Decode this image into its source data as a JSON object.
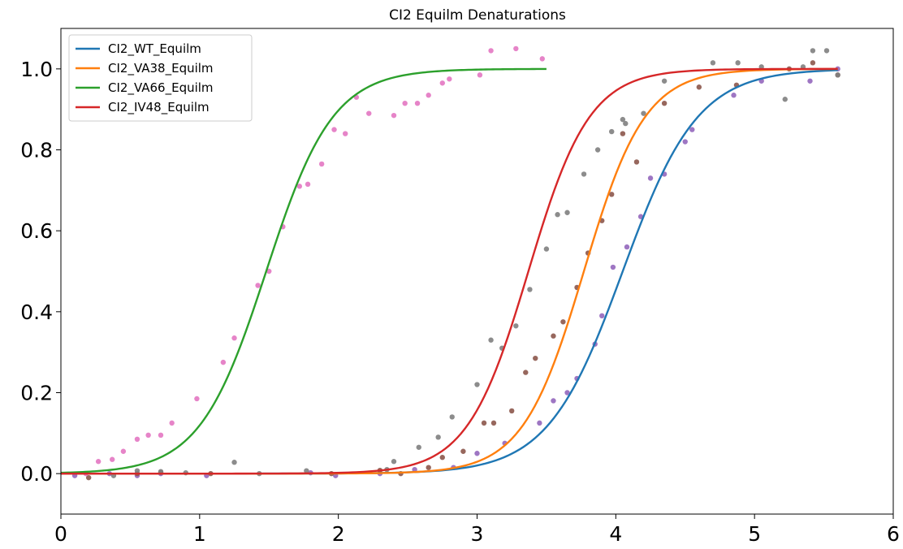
{
  "chart_data": {
    "type": "line",
    "title": "CI2 Equilm Denaturations",
    "xlabel": "",
    "ylabel": "",
    "xlim": [
      0,
      6
    ],
    "ylim": [
      -0.1,
      1.1
    ],
    "xticks": [
      "0",
      "1",
      "2",
      "3",
      "4",
      "5",
      "6"
    ],
    "yticks": [
      "0.0",
      "0.2",
      "0.4",
      "0.6",
      "0.8",
      "1.0"
    ],
    "xtick_values": [
      0,
      1,
      2,
      3,
      4,
      5,
      6
    ],
    "ytick_values": [
      0.0,
      0.2,
      0.4,
      0.6,
      0.8,
      1.0
    ],
    "grid": false,
    "legend_position": "top-left",
    "series": [
      {
        "name": "CI2_WT_Equilm",
        "color": "#1f77b4",
        "fit": {
          "midpoint": 4.05,
          "slope": 0.27,
          "x_range": [
            0.0,
            5.6
          ]
        },
        "points_color": "#9467bd",
        "points": [
          [
            0.1,
            -0.005
          ],
          [
            0.35,
            0.0
          ],
          [
            0.55,
            -0.005
          ],
          [
            0.72,
            0.0
          ],
          [
            1.05,
            -0.005
          ],
          [
            1.8,
            0.002
          ],
          [
            1.98,
            -0.005
          ],
          [
            2.3,
            0.0
          ],
          [
            2.55,
            0.01
          ],
          [
            2.83,
            0.015
          ],
          [
            3.0,
            0.05
          ],
          [
            3.2,
            0.075
          ],
          [
            3.45,
            0.125
          ],
          [
            3.55,
            0.18
          ],
          [
            3.65,
            0.2
          ],
          [
            3.72,
            0.235
          ],
          [
            3.85,
            0.32
          ],
          [
            3.9,
            0.39
          ],
          [
            3.98,
            0.51
          ],
          [
            4.08,
            0.56
          ],
          [
            4.18,
            0.635
          ],
          [
            4.25,
            0.73
          ],
          [
            4.35,
            0.74
          ],
          [
            4.5,
            0.82
          ],
          [
            4.55,
            0.85
          ],
          [
            4.85,
            0.935
          ],
          [
            5.05,
            0.97
          ],
          [
            5.4,
            0.97
          ],
          [
            5.6,
            1.0
          ]
        ]
      },
      {
        "name": "CI2_VA38_Equilm",
        "color": "#ff7f0e",
        "fit": {
          "midpoint": 3.77,
          "slope": 0.22,
          "x_range": [
            0.0,
            5.6
          ]
        },
        "points_color": "#8c564b",
        "points": [
          [
            0.2,
            -0.01
          ],
          [
            0.55,
            0.0
          ],
          [
            0.72,
            0.003
          ],
          [
            1.08,
            0.0
          ],
          [
            1.95,
            0.0
          ],
          [
            2.3,
            0.008
          ],
          [
            2.45,
            0.0
          ],
          [
            2.65,
            0.015
          ],
          [
            2.75,
            0.04
          ],
          [
            2.9,
            0.055
          ],
          [
            3.05,
            0.125
          ],
          [
            3.12,
            0.125
          ],
          [
            3.25,
            0.155
          ],
          [
            3.35,
            0.25
          ],
          [
            3.42,
            0.285
          ],
          [
            3.55,
            0.34
          ],
          [
            3.62,
            0.375
          ],
          [
            3.72,
            0.46
          ],
          [
            3.8,
            0.545
          ],
          [
            3.9,
            0.625
          ],
          [
            3.97,
            0.69
          ],
          [
            4.05,
            0.84
          ],
          [
            4.15,
            0.77
          ],
          [
            4.35,
            0.915
          ],
          [
            4.6,
            0.955
          ],
          [
            4.87,
            0.96
          ],
          [
            5.25,
            1.0
          ],
          [
            5.42,
            1.015
          ],
          [
            5.6,
            0.985
          ]
        ]
      },
      {
        "name": "CI2_VA66_Equilm",
        "color": "#2ca02c",
        "fit": {
          "midpoint": 1.48,
          "slope": 0.24,
          "x_range": [
            0.0,
            3.5
          ]
        },
        "points_color": "#e377c2",
        "points": [
          [
            0.18,
            0.0
          ],
          [
            0.27,
            0.03
          ],
          [
            0.37,
            0.035
          ],
          [
            0.45,
            0.055
          ],
          [
            0.55,
            0.085
          ],
          [
            0.63,
            0.095
          ],
          [
            0.72,
            0.095
          ],
          [
            0.8,
            0.125
          ],
          [
            0.98,
            0.185
          ],
          [
            1.17,
            0.275
          ],
          [
            1.25,
            0.335
          ],
          [
            1.42,
            0.465
          ],
          [
            1.5,
            0.5
          ],
          [
            1.6,
            0.61
          ],
          [
            1.72,
            0.71
          ],
          [
            1.78,
            0.715
          ],
          [
            1.88,
            0.765
          ],
          [
            1.97,
            0.85
          ],
          [
            2.05,
            0.84
          ],
          [
            2.13,
            0.93
          ],
          [
            2.22,
            0.89
          ],
          [
            2.4,
            0.885
          ],
          [
            2.48,
            0.915
          ],
          [
            2.57,
            0.915
          ],
          [
            2.65,
            0.935
          ],
          [
            2.75,
            0.965
          ],
          [
            2.8,
            0.975
          ],
          [
            3.02,
            0.985
          ],
          [
            3.1,
            1.045
          ],
          [
            3.28,
            1.05
          ],
          [
            3.47,
            1.025
          ]
        ]
      },
      {
        "name": "CI2_IV48_Equilm",
        "color": "#d62728",
        "fit": {
          "midpoint": 3.37,
          "slope": 0.22,
          "x_range": [
            0.0,
            5.6
          ]
        },
        "points_color": "#7f7f7f",
        "points": [
          [
            0.38,
            -0.005
          ],
          [
            0.55,
            0.007
          ],
          [
            0.72,
            0.005
          ],
          [
            0.9,
            0.002
          ],
          [
            1.25,
            0.028
          ],
          [
            1.43,
            0.0
          ],
          [
            1.77,
            0.007
          ],
          [
            2.35,
            0.01
          ],
          [
            2.4,
            0.03
          ],
          [
            2.58,
            0.065
          ],
          [
            2.72,
            0.09
          ],
          [
            2.82,
            0.14
          ],
          [
            3.0,
            0.22
          ],
          [
            3.1,
            0.33
          ],
          [
            3.18,
            0.31
          ],
          [
            3.28,
            0.365
          ],
          [
            3.38,
            0.455
          ],
          [
            3.5,
            0.555
          ],
          [
            3.58,
            0.64
          ],
          [
            3.65,
            0.645
          ],
          [
            3.77,
            0.74
          ],
          [
            3.87,
            0.8
          ],
          [
            3.97,
            0.845
          ],
          [
            4.07,
            0.865
          ],
          [
            4.05,
            0.875
          ],
          [
            4.2,
            0.89
          ],
          [
            4.35,
            0.97
          ],
          [
            4.7,
            1.015
          ],
          [
            4.88,
            1.015
          ],
          [
            5.05,
            1.005
          ],
          [
            5.22,
            0.925
          ],
          [
            5.35,
            1.005
          ],
          [
            5.42,
            1.045
          ],
          [
            5.52,
            1.045
          ],
          [
            5.6,
            0.985
          ]
        ]
      }
    ]
  }
}
